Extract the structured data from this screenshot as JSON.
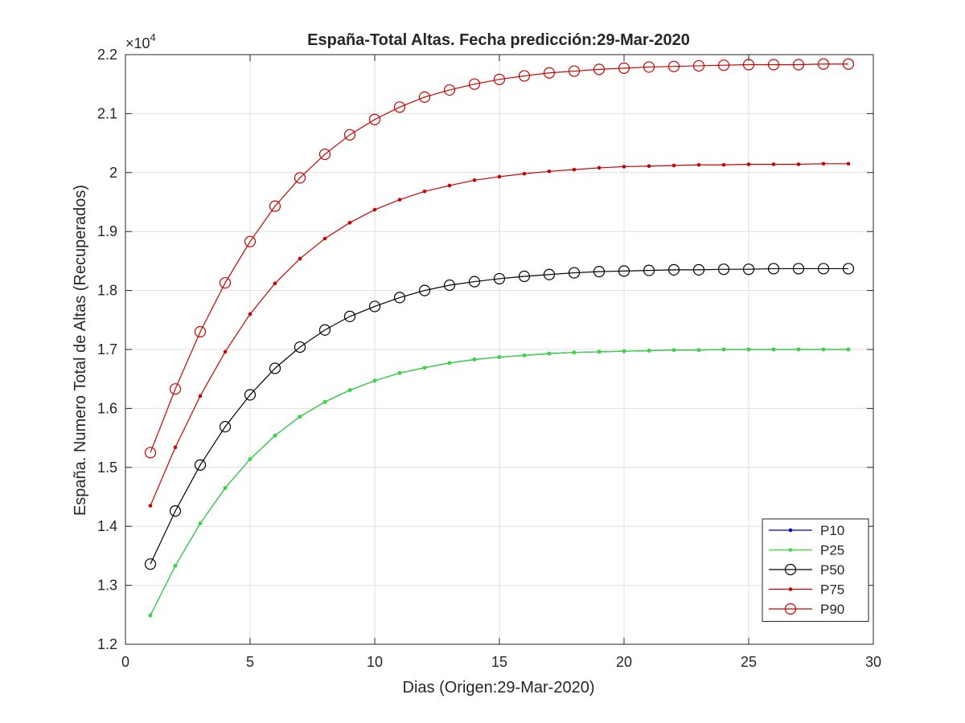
{
  "chart_data": {
    "type": "line",
    "title": "España-Total Altas. Fecha predicción:29-Mar-2020",
    "xlabel": "Dias (Origen:29-Mar-2020)",
    "ylabel": "España. Numero Total de Altas (Recuperados)",
    "y_exponent_label": "×10",
    "y_exponent_power": "4",
    "xlim": [
      0,
      30
    ],
    "ylim": [
      1.2,
      2.2
    ],
    "xticks": [
      "0",
      "5",
      "10",
      "15",
      "20",
      "25",
      "30"
    ],
    "yticks": [
      "1.2",
      "1.3",
      "1.4",
      "1.5",
      "1.6",
      "1.7",
      "1.8",
      "1.9",
      "2",
      "2.1",
      "2.2"
    ],
    "grid": true,
    "legend_position": "bottom-right",
    "x": [
      1,
      2,
      3,
      4,
      5,
      6,
      7,
      8,
      9,
      10,
      11,
      12,
      13,
      14,
      15,
      16,
      17,
      18,
      19,
      20,
      21,
      22,
      23,
      24,
      25,
      26,
      27,
      28,
      29
    ],
    "series": [
      {
        "name": "P10",
        "color": "#0000cc",
        "marker": "dot",
        "values": [
          1.249,
          1.333,
          1.405,
          1.465,
          1.514,
          1.554,
          1.586,
          1.611,
          1.631,
          1.647,
          1.66,
          1.669,
          1.677,
          1.683,
          1.687,
          1.69,
          1.693,
          1.695,
          1.696,
          1.697,
          1.698,
          1.699,
          1.699,
          1.7,
          1.7,
          1.7,
          1.7,
          1.7,
          1.7
        ]
      },
      {
        "name": "P25",
        "color": "#33dd33",
        "marker": "dot",
        "values": [
          1.249,
          1.333,
          1.405,
          1.465,
          1.514,
          1.554,
          1.586,
          1.611,
          1.631,
          1.647,
          1.66,
          1.669,
          1.677,
          1.683,
          1.687,
          1.69,
          1.693,
          1.695,
          1.696,
          1.697,
          1.698,
          1.699,
          1.699,
          1.7,
          1.7,
          1.7,
          1.7,
          1.7,
          1.7
        ]
      },
      {
        "name": "P50",
        "color": "#000000",
        "marker": "circle",
        "values": [
          1.336,
          1.426,
          1.504,
          1.569,
          1.623,
          1.668,
          1.704,
          1.733,
          1.756,
          1.773,
          1.788,
          1.8,
          1.809,
          1.815,
          1.82,
          1.824,
          1.827,
          1.83,
          1.832,
          1.833,
          1.834,
          1.835,
          1.835,
          1.836,
          1.836,
          1.837,
          1.837,
          1.837,
          1.837
        ]
      },
      {
        "name": "P75",
        "color": "#cc0000",
        "marker": "dot",
        "values": [
          1.435,
          1.534,
          1.621,
          1.696,
          1.76,
          1.812,
          1.854,
          1.888,
          1.915,
          1.937,
          1.954,
          1.968,
          1.978,
          1.987,
          1.993,
          1.998,
          2.002,
          2.005,
          2.008,
          2.01,
          2.011,
          2.012,
          2.013,
          2.013,
          2.014,
          2.014,
          2.014,
          2.015,
          2.015
        ]
      },
      {
        "name": "P90",
        "color": "#cc0000",
        "marker": "circle",
        "values": [
          1.525,
          1.633,
          1.73,
          1.813,
          1.883,
          1.943,
          1.991,
          2.031,
          2.064,
          2.09,
          2.111,
          2.128,
          2.14,
          2.15,
          2.158,
          2.164,
          2.169,
          2.172,
          2.175,
          2.177,
          2.179,
          2.18,
          2.181,
          2.182,
          2.183,
          2.183,
          2.183,
          2.184,
          2.184
        ]
      }
    ]
  }
}
